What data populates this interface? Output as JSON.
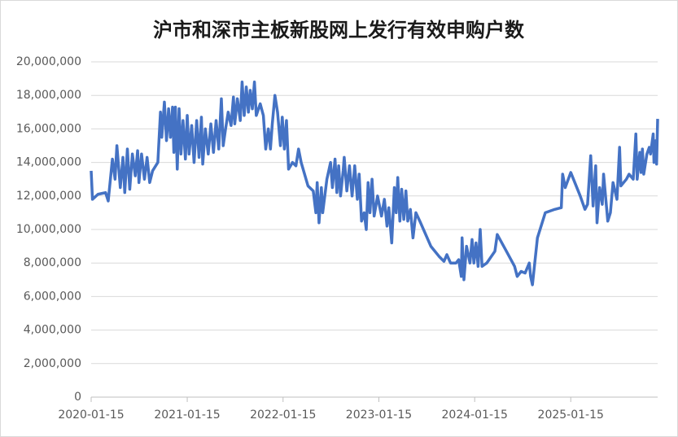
{
  "chart_data": {
    "type": "line",
    "title": "沪市和深市主板新股网上发行有效申购户数",
    "color": "#4472c4",
    "x": [
      "2020-01-15",
      "2020-01-20",
      "2020-02-10",
      "2020-03-10",
      "2020-03-20",
      "2020-04-05",
      "2020-04-15",
      "2020-04-22",
      "2020-05-05",
      "2020-05-15",
      "2020-05-22",
      "2020-06-01",
      "2020-06-10",
      "2020-06-20",
      "2020-07-01",
      "2020-07-10",
      "2020-07-15",
      "2020-07-25",
      "2020-08-05",
      "2020-08-15",
      "2020-08-25",
      "2020-09-05",
      "2020-09-25",
      "2020-10-05",
      "2020-10-10",
      "2020-10-20",
      "2020-10-28",
      "2020-11-05",
      "2020-11-12",
      "2020-11-20",
      "2020-11-25",
      "2020-12-01",
      "2020-12-08",
      "2020-12-15",
      "2020-12-22",
      "2020-12-30",
      "2021-01-08",
      "2021-01-15",
      "2021-01-22",
      "2021-02-01",
      "2021-02-10",
      "2021-02-20",
      "2021-03-01",
      "2021-03-10",
      "2021-03-15",
      "2021-03-25",
      "2021-04-05",
      "2021-04-15",
      "2021-04-25",
      "2021-05-05",
      "2021-05-15",
      "2021-05-25",
      "2021-06-01",
      "2021-06-10",
      "2021-06-20",
      "2021-07-01",
      "2021-07-10",
      "2021-07-15",
      "2021-07-25",
      "2021-08-05",
      "2021-08-12",
      "2021-08-20",
      "2021-08-28",
      "2021-09-05",
      "2021-09-12",
      "2021-09-20",
      "2021-09-28",
      "2021-10-05",
      "2021-10-20",
      "2021-11-01",
      "2021-11-10",
      "2021-11-20",
      "2021-11-28",
      "2021-12-05",
      "2021-12-15",
      "2021-12-25",
      "2022-01-05",
      "2022-01-12",
      "2022-01-20",
      "2022-01-28",
      "2022-02-05",
      "2022-02-20",
      "2022-03-05",
      "2022-03-15",
      "2022-03-25",
      "2022-04-20",
      "2022-05-10",
      "2022-05-20",
      "2022-05-25",
      "2022-06-01",
      "2022-06-10",
      "2022-06-15",
      "2022-07-01",
      "2022-07-15",
      "2022-07-22",
      "2022-08-01",
      "2022-08-08",
      "2022-08-15",
      "2022-08-22",
      "2022-09-01",
      "2022-09-05",
      "2022-09-15",
      "2022-09-25",
      "2022-10-05",
      "2022-10-15",
      "2022-10-25",
      "2022-11-01",
      "2022-11-10",
      "2022-11-20",
      "2022-11-28",
      "2022-12-05",
      "2022-12-12",
      "2022-12-20",
      "2022-12-28",
      "2023-01-10",
      "2023-01-25",
      "2023-02-05",
      "2023-02-15",
      "2023-02-22",
      "2023-03-05",
      "2023-03-15",
      "2023-03-22",
      "2023-03-28",
      "2023-04-05",
      "2023-04-12",
      "2023-04-20",
      "2023-04-28",
      "2023-05-05",
      "2023-05-15",
      "2023-05-25",
      "2023-06-05",
      "2023-06-20",
      "2023-08-01",
      "2023-09-01",
      "2023-09-20",
      "2023-10-01",
      "2023-10-15",
      "2023-11-05",
      "2023-11-15",
      "2023-11-25",
      "2023-11-28",
      "2023-12-05",
      "2023-12-15",
      "2023-12-28",
      "2024-01-05",
      "2024-01-12",
      "2024-01-20",
      "2024-01-28",
      "2024-02-05",
      "2024-02-12",
      "2024-03-01",
      "2024-04-01",
      "2024-04-10",
      "2024-05-15",
      "2024-06-15",
      "2024-06-25",
      "2024-07-10",
      "2024-07-25",
      "2024-08-10",
      "2024-08-15",
      "2024-08-22",
      "2024-09-10",
      "2024-10-10",
      "2024-11-15",
      "2024-12-10",
      "2024-12-15",
      "2024-12-25",
      "2025-01-15",
      "2025-02-20",
      "2025-03-10",
      "2025-03-20",
      "2025-04-01",
      "2025-04-10",
      "2025-04-20",
      "2025-04-25",
      "2025-05-05",
      "2025-05-15",
      "2025-05-20",
      "2025-06-05",
      "2025-06-15",
      "2025-06-25",
      "2025-07-10",
      "2025-07-20",
      "2025-07-25",
      "2025-08-15",
      "2025-08-25",
      "2025-09-10",
      "2025-09-20",
      "2025-09-25",
      "2025-10-05",
      "2025-10-10",
      "2025-10-15",
      "2025-10-20",
      "2025-11-01",
      "2025-11-10",
      "2025-11-15",
      "2025-11-25",
      "2025-11-28",
      "2025-12-05",
      "2025-12-08",
      "2025-12-12"
    ],
    "values": [
      13500000,
      11800000,
      12100000,
      12200000,
      11700000,
      14200000,
      13000000,
      15000000,
      12500000,
      14300000,
      12200000,
      14800000,
      12400000,
      14500000,
      13200000,
      14700000,
      12800000,
      14500000,
      13000000,
      14300000,
      12800000,
      13500000,
      14000000,
      17000000,
      15500000,
      17600000,
      15300000,
      17200000,
      15500000,
      17300000,
      14600000,
      17300000,
      13600000,
      17200000,
      14500000,
      16500000,
      14200000,
      16800000,
      14500000,
      16200000,
      14000000,
      16500000,
      14300000,
      16700000,
      13900000,
      16000000,
      14500000,
      16300000,
      14600000,
      16500000,
      14800000,
      17800000,
      15000000,
      16000000,
      17000000,
      16200000,
      17900000,
      16300000,
      17800000,
      16500000,
      18800000,
      16800000,
      18500000,
      17000000,
      18300000,
      17200000,
      18800000,
      16800000,
      17500000,
      16800000,
      14800000,
      16000000,
      14800000,
      16300000,
      18000000,
      17000000,
      15000000,
      16700000,
      14800000,
      16500000,
      13600000,
      14000000,
      13800000,
      14800000,
      14000000,
      12600000,
      12300000,
      11000000,
      12800000,
      10400000,
      12500000,
      11000000,
      13000000,
      14000000,
      12500000,
      14200000,
      12200000,
      13800000,
      12000000,
      13500000,
      14300000,
      12300000,
      13800000,
      12000000,
      13800000,
      11800000,
      13300000,
      10500000,
      11000000,
      10000000,
      12800000,
      11000000,
      13000000,
      10800000,
      12000000,
      10800000,
      11800000,
      10200000,
      11300000,
      9200000,
      12500000,
      11000000,
      13100000,
      10500000,
      12400000,
      10600000,
      12300000,
      10500000,
      11200000,
      9500000,
      11000000,
      10500000,
      9000000,
      8400000,
      8100000,
      8500000,
      8000000,
      8000000,
      8200000,
      7200000,
      9500000,
      7000000,
      9000000,
      8000000,
      9400000,
      8000000,
      9200000,
      7800000,
      10000000,
      7800000,
      8000000,
      8700000,
      9700000,
      8700000,
      7800000,
      7200000,
      7500000,
      7400000,
      8000000,
      7200000,
      6700000,
      9500000,
      11000000,
      11200000,
      11300000,
      13300000,
      12500000,
      13400000,
      12000000,
      11200000,
      11500000,
      14400000,
      11400000,
      13800000,
      10400000,
      12500000,
      11500000,
      13300000,
      10500000,
      11000000,
      12800000,
      11800000,
      14900000,
      12600000,
      13000000,
      13300000,
      13000000,
      15700000,
      13000000,
      14600000,
      13400000,
      14800000,
      13300000,
      14500000,
      14900000,
      14500000,
      15700000,
      14000000,
      15300000,
      13900000,
      16600000
    ],
    "xlim": [
      "2020-01-15",
      "2025-12-12"
    ],
    "xticks": [
      "2020-01-15",
      "2021-01-15",
      "2022-01-15",
      "2023-01-15",
      "2024-01-15",
      "2025-01-15"
    ],
    "ylim": [
      0,
      20000000
    ],
    "yticks": [
      0,
      {
        "value": 2000000,
        "label": "2,000,000"
      },
      {
        "value": 4000000,
        "label": "4,000,000"
      },
      {
        "value": 6000000,
        "label": "6,000,000"
      },
      {
        "value": 8000000,
        "label": "8,000,000"
      },
      {
        "value": 10000000,
        "label": "10,000,000"
      },
      {
        "value": 12000000,
        "label": "12,000,000"
      },
      {
        "value": 14000000,
        "label": "14,000,000"
      },
      {
        "value": 16000000,
        "label": "16,000,000"
      },
      {
        "value": 18000000,
        "label": "18,000,000"
      },
      {
        "value": 20000000,
        "label": "20,000,000"
      }
    ],
    "grid": true
  }
}
